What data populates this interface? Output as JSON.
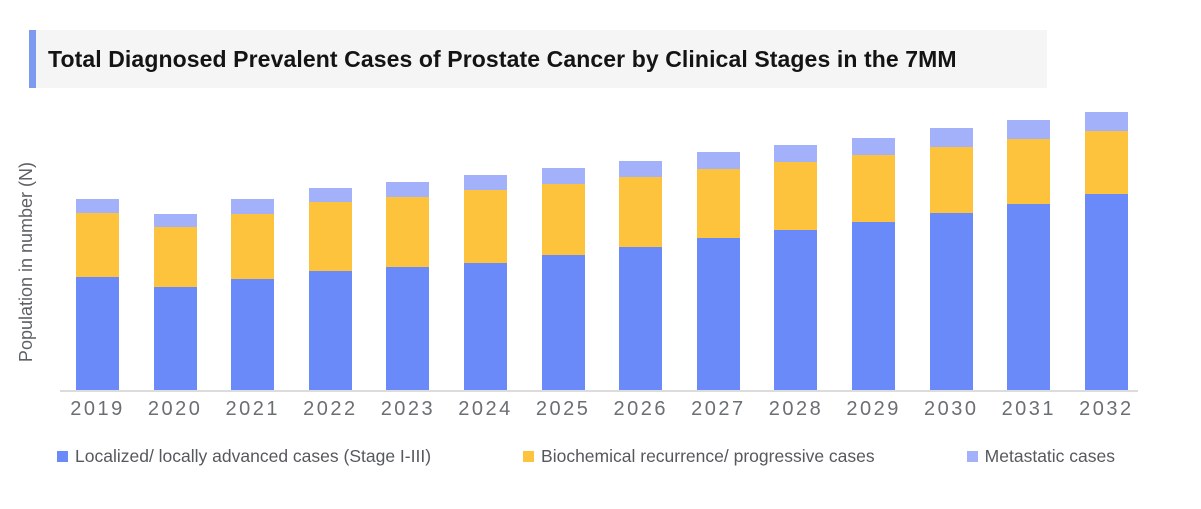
{
  "title": {
    "text": "Total Diagnosed Prevalent Cases of Prostate Cancer by Clinical Stages in the 7MM"
  },
  "y_axis": {
    "label": "Population in number (N)"
  },
  "colors": {
    "accent_bar": "#7d99f0",
    "title_background": "#f5f5f6",
    "axis_line": "#dcdcdc",
    "tick_text": "#6b6f72",
    "legend_text": "#55595d",
    "series_blue": "#6a8afa",
    "series_yellow": "#fdc33c",
    "series_lavender": "#a3b1fa"
  },
  "chart_data": {
    "type": "bar",
    "stacked": true,
    "title": "Total Diagnosed Prevalent Cases of Prostate Cancer by Clinical Stages in the 7MM",
    "xlabel": "",
    "ylabel": "Population in number (N)",
    "ylim": [
      0,
      278
    ],
    "y_units": "relative height units (y axis shows no numeric tick labels)",
    "grid": false,
    "legend_position": "bottom",
    "categories": [
      "2019",
      "2020",
      "2021",
      "2022",
      "2023",
      "2024",
      "2025",
      "2026",
      "2027",
      "2028",
      "2029",
      "2030",
      "2031",
      "2032"
    ],
    "series": [
      {
        "name": "Localized/ locally advanced cases (Stage I-III)",
        "color": "#6a8afa",
        "values": [
          113,
          103,
          111,
          119,
          123,
          127,
          135,
          143,
          152,
          160,
          168,
          177,
          186,
          196
        ]
      },
      {
        "name": "Biochemical recurrence/ progressive cases",
        "color": "#fdc33c",
        "values": [
          64,
          60,
          65,
          69,
          70,
          73,
          71,
          70,
          69,
          68,
          67,
          66,
          65,
          63
        ]
      },
      {
        "name": "Metastatic cases",
        "color": "#a3b1fa",
        "values": [
          14,
          13,
          15,
          14,
          15,
          15,
          16,
          16,
          17,
          17,
          17,
          19,
          19,
          19
        ]
      }
    ]
  }
}
